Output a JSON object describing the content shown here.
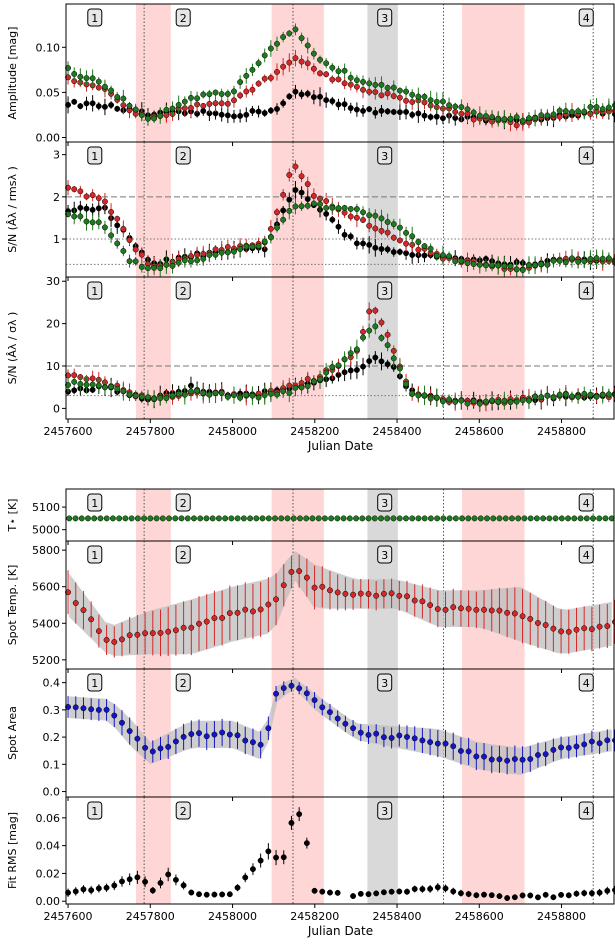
{
  "chart_data": {
    "type": "scatter",
    "x_axis": {
      "label": "Julian Date",
      "xlim": [
        2457595,
        2458930
      ],
      "ticks": [
        2457600,
        2457800,
        2458000,
        2458200,
        2458400,
        2458600,
        2458800
      ],
      "tick_labels": [
        "2457600",
        "2457800",
        "2458000",
        "2458200",
        "2458400",
        "2458600",
        "2458800"
      ]
    },
    "epoch_labels": [
      "1",
      "2",
      "3",
      "4"
    ],
    "epoch_label_x": [
      2457665,
      2457880,
      2458370,
      2458860
    ],
    "shaded_bands": [
      {
        "x0": 2457765,
        "x1": 2457850,
        "color": "#ffd6d6"
      },
      {
        "x0": 2458095,
        "x1": 2458222,
        "color": "#ffd6d6"
      },
      {
        "x0": 2458328,
        "x1": 2458402,
        "color": "#d9d9d9"
      },
      {
        "x0": 2458558,
        "x1": 2458710,
        "color": "#ffd6d6"
      }
    ],
    "vlines": [
      2457785,
      2458147,
      2458513,
      2458877
    ],
    "colors": {
      "black": "#000000",
      "red": "#d62728",
      "green": "#1f7a1f",
      "blue": "#1515c8",
      "band": "#bdbdbd"
    },
    "top_figure": [
      {
        "name": "amplitude",
        "ylabel": "Amplitude [mag]",
        "ylim": [
          -0.005,
          0.148
        ],
        "yticks": [
          0.0,
          0.05,
          0.1
        ],
        "ytick_labels": [
          "0.00",
          "0.05",
          "0.10"
        ],
        "hlines": [],
        "series": [
          {
            "name": "",
            "color": "#000000",
            "x": [
              2457600,
              2457690,
              2457750,
              2457800,
              2457900,
              2458000,
              2458100,
              2458150,
              2458200,
              2458300,
              2458400,
              2458500,
              2458600,
              2458700,
              2458800,
              2458930
            ],
            "y": [
              0.038,
              0.035,
              0.03,
              0.025,
              0.028,
              0.025,
              0.03,
              0.05,
              0.045,
              0.032,
              0.027,
              0.024,
              0.02,
              0.018,
              0.025,
              0.028
            ]
          },
          {
            "name": "",
            "color": "#d62728",
            "x": [
              2457600,
              2457690,
              2457750,
              2457800,
              2457900,
              2458000,
              2458100,
              2458150,
              2458200,
              2458300,
              2458400,
              2458500,
              2458600,
              2458700,
              2458800,
              2458930
            ],
            "y": [
              0.065,
              0.052,
              0.03,
              0.02,
              0.035,
              0.04,
              0.07,
              0.09,
              0.075,
              0.055,
              0.045,
              0.035,
              0.02,
              0.015,
              0.025,
              0.03
            ]
          },
          {
            "name": "",
            "color": "#1f7a1f",
            "x": [
              2457600,
              2457690,
              2457750,
              2457800,
              2457900,
              2458000,
              2458100,
              2458150,
              2458200,
              2458300,
              2458400,
              2458500,
              2458600,
              2458700,
              2458800,
              2458930
            ],
            "y": [
              0.075,
              0.058,
              0.035,
              0.02,
              0.045,
              0.05,
              0.1,
              0.12,
              0.09,
              0.065,
              0.055,
              0.04,
              0.025,
              0.02,
              0.028,
              0.035
            ]
          }
        ]
      },
      {
        "name": "sn_rms",
        "ylabel": "S/N (Âλ / rmsλ )",
        "ylim": [
          0.1,
          3.3
        ],
        "yticks": [
          1,
          2,
          3
        ],
        "ytick_labels": [
          "1",
          "2",
          "3"
        ],
        "hlines": [
          {
            "y": 2.0,
            "style": "dashed"
          },
          {
            "y": 1.0,
            "style": "dotted"
          },
          {
            "y": 0.4,
            "style": "dotted"
          }
        ],
        "series": [
          {
            "name": "",
            "color": "#000000",
            "x": [
              2457600,
              2457690,
              2457750,
              2457800,
              2457900,
              2458000,
              2458080,
              2458150,
              2458200,
              2458300,
              2458400,
              2458500,
              2458600,
              2458700,
              2458800,
              2458930
            ],
            "y": [
              1.7,
              1.7,
              1.0,
              0.4,
              0.6,
              0.7,
              0.8,
              2.2,
              1.8,
              0.9,
              0.7,
              0.6,
              0.5,
              0.4,
              0.5,
              0.5
            ]
          },
          {
            "name": "",
            "color": "#d62728",
            "x": [
              2457600,
              2457690,
              2457750,
              2457800,
              2457900,
              2458000,
              2458080,
              2458150,
              2458200,
              2458300,
              2458400,
              2458500,
              2458600,
              2458700,
              2458800,
              2458930
            ],
            "y": [
              2.2,
              1.9,
              1.0,
              0.3,
              0.6,
              0.8,
              0.9,
              2.8,
              2.0,
              1.5,
              1.0,
              0.6,
              0.4,
              0.3,
              0.5,
              0.5
            ]
          },
          {
            "name": "",
            "color": "#1f7a1f",
            "x": [
              2457600,
              2457690,
              2457750,
              2457800,
              2457900,
              2458000,
              2458080,
              2458150,
              2458200,
              2458300,
              2458400,
              2458500,
              2458600,
              2458700,
              2458800,
              2458930
            ],
            "y": [
              1.6,
              1.3,
              0.5,
              0.3,
              0.5,
              0.7,
              0.9,
              1.8,
              1.8,
              1.7,
              1.3,
              0.6,
              0.4,
              0.3,
              0.5,
              0.5
            ]
          }
        ]
      },
      {
        "name": "sn_sigma",
        "ylabel": "S/N (Âλ / σλ )",
        "ylim": [
          -2.5,
          31
        ],
        "yticks": [
          0,
          10,
          20,
          30
        ],
        "ytick_labels": [
          "0",
          "10",
          "20",
          "30"
        ],
        "hlines": [
          {
            "y": 10,
            "style": "dashed"
          },
          {
            "y": 3,
            "style": "dotted"
          }
        ],
        "series": [
          {
            "name": "",
            "color": "#000000",
            "x": [
              2457600,
              2457690,
              2457800,
              2457900,
              2458000,
              2458100,
              2458200,
              2458300,
              2458340,
              2458400,
              2458430,
              2458500,
              2458600,
              2458700,
              2458800,
              2458930
            ],
            "y": [
              4,
              5,
              2,
              5,
              3,
              4,
              6,
              9,
              12,
              9,
              4,
              2,
              1.5,
              2,
              3,
              3
            ]
          },
          {
            "name": "",
            "color": "#d62728",
            "x": [
              2457600,
              2457690,
              2457800,
              2457900,
              2458000,
              2458100,
              2458200,
              2458300,
              2458340,
              2458400,
              2458430,
              2458500,
              2458600,
              2458700,
              2458800,
              2458930
            ],
            "y": [
              8,
              6,
              2,
              4,
              3,
              4,
              7,
              13,
              25,
              12,
              4,
              2,
              1.5,
              2,
              3,
              3
            ]
          },
          {
            "name": "",
            "color": "#1f7a1f",
            "x": [
              2457600,
              2457690,
              2457800,
              2457900,
              2458000,
              2458100,
              2458200,
              2458300,
              2458340,
              2458400,
              2458430,
              2458500,
              2458600,
              2458700,
              2458800,
              2458930
            ],
            "y": [
              6,
              5,
              2,
              4,
              3,
              3,
              6,
              14,
              20,
              11,
              4,
              2,
              1.5,
              2,
              3,
              3
            ]
          }
        ]
      }
    ],
    "bottom_figure": [
      {
        "name": "tstar",
        "ylabel": "T⋆ [K]",
        "ylim": [
          4950,
          5180
        ],
        "yticks": [
          5000,
          5100
        ],
        "ytick_labels": [
          "5000",
          "5100"
        ],
        "series": [
          {
            "name": "",
            "color": "#1f7a1f",
            "x": [
              2457600,
              2458930
            ],
            "y": [
              5050,
              5050
            ]
          }
        ]
      },
      {
        "name": "spot_temp",
        "ylabel": "Spot Temp. [K]",
        "ylim": [
          5150,
          5850
        ],
        "yticks": [
          5200,
          5400,
          5600,
          5800
        ],
        "ytick_labels": [
          "5200",
          "5400",
          "5600",
          "5800"
        ],
        "series": [
          {
            "name": "",
            "color": "#d62728",
            "x": [
              2457600,
              2457700,
              2457800,
              2457900,
              2458000,
              2458100,
              2458150,
              2458200,
              2458300,
              2458400,
              2458500,
              2458600,
              2458700,
              2458800,
              2458930
            ],
            "y": [
              5560,
              5300,
              5350,
              5380,
              5450,
              5500,
              5720,
              5600,
              5560,
              5560,
              5480,
              5480,
              5450,
              5350,
              5400
            ],
            "yerr": [
              120,
              80,
              120,
              150,
              150,
              150,
              80,
              120,
              80,
              80,
              100,
              100,
              150,
              120,
              120
            ]
          }
        ]
      },
      {
        "name": "spot_area",
        "ylabel": "Spot Area",
        "ylim": [
          -0.02,
          0.45
        ],
        "yticks": [
          0.0,
          0.1,
          0.2,
          0.3,
          0.4
        ],
        "ytick_labels": [
          "0.0",
          "0.1",
          "0.2",
          "0.3",
          "0.4"
        ],
        "series": [
          {
            "name": "",
            "color": "#1515c8",
            "x": [
              2457600,
              2457700,
              2457750,
              2457800,
              2457900,
              2458000,
              2458080,
              2458100,
              2458150,
              2458200,
              2458300,
              2458400,
              2458500,
              2458600,
              2458700,
              2458800,
              2458930
            ],
            "y": [
              0.31,
              0.3,
              0.22,
              0.14,
              0.21,
              0.21,
              0.16,
              0.35,
              0.4,
              0.33,
              0.22,
              0.2,
              0.18,
              0.13,
              0.11,
              0.16,
              0.19
            ],
            "yerr": [
              0.04,
              0.04,
              0.05,
              0.04,
              0.05,
              0.05,
              0.05,
              0.03,
              0.02,
              0.03,
              0.03,
              0.04,
              0.05,
              0.05,
              0.05,
              0.04,
              0.04
            ]
          }
        ]
      },
      {
        "name": "fit_rms",
        "ylabel": "Fit RMS [mag]",
        "ylim": [
          -0.002,
          0.075
        ],
        "yticks": [
          0.0,
          0.02,
          0.04,
          0.06
        ],
        "ytick_labels": [
          "0.00",
          "0.02",
          "0.04",
          "0.06"
        ],
        "series": [
          {
            "name": "",
            "color": "#000000",
            "x": [
              2457600,
              2457700,
              2457780,
              2457800,
              2457840,
              2457900,
              2458000,
              2458090,
              2458120,
              2458150,
              2458170,
              2458200,
              2458300,
              2458400,
              2458500,
              2458600,
              2458700,
              2458800,
              2458930
            ],
            "y": [
              0.007,
              0.01,
              0.018,
              0.005,
              0.02,
              0.006,
              0.005,
              0.037,
              0.025,
              0.065,
              0.06,
              0.007,
              0.004,
              0.006,
              0.01,
              0.004,
              0.003,
              0.004,
              0.008
            ],
            "yerr": [
              0.003,
              0.003,
              0.005,
              0.002,
              0.005,
              0.002,
              0.002,
              0.006,
              0.005,
              0.005,
              0.005,
              0.002,
              0.002,
              0.002,
              0.003,
              0.002,
              0.002,
              0.002,
              0.003
            ]
          }
        ]
      }
    ]
  }
}
